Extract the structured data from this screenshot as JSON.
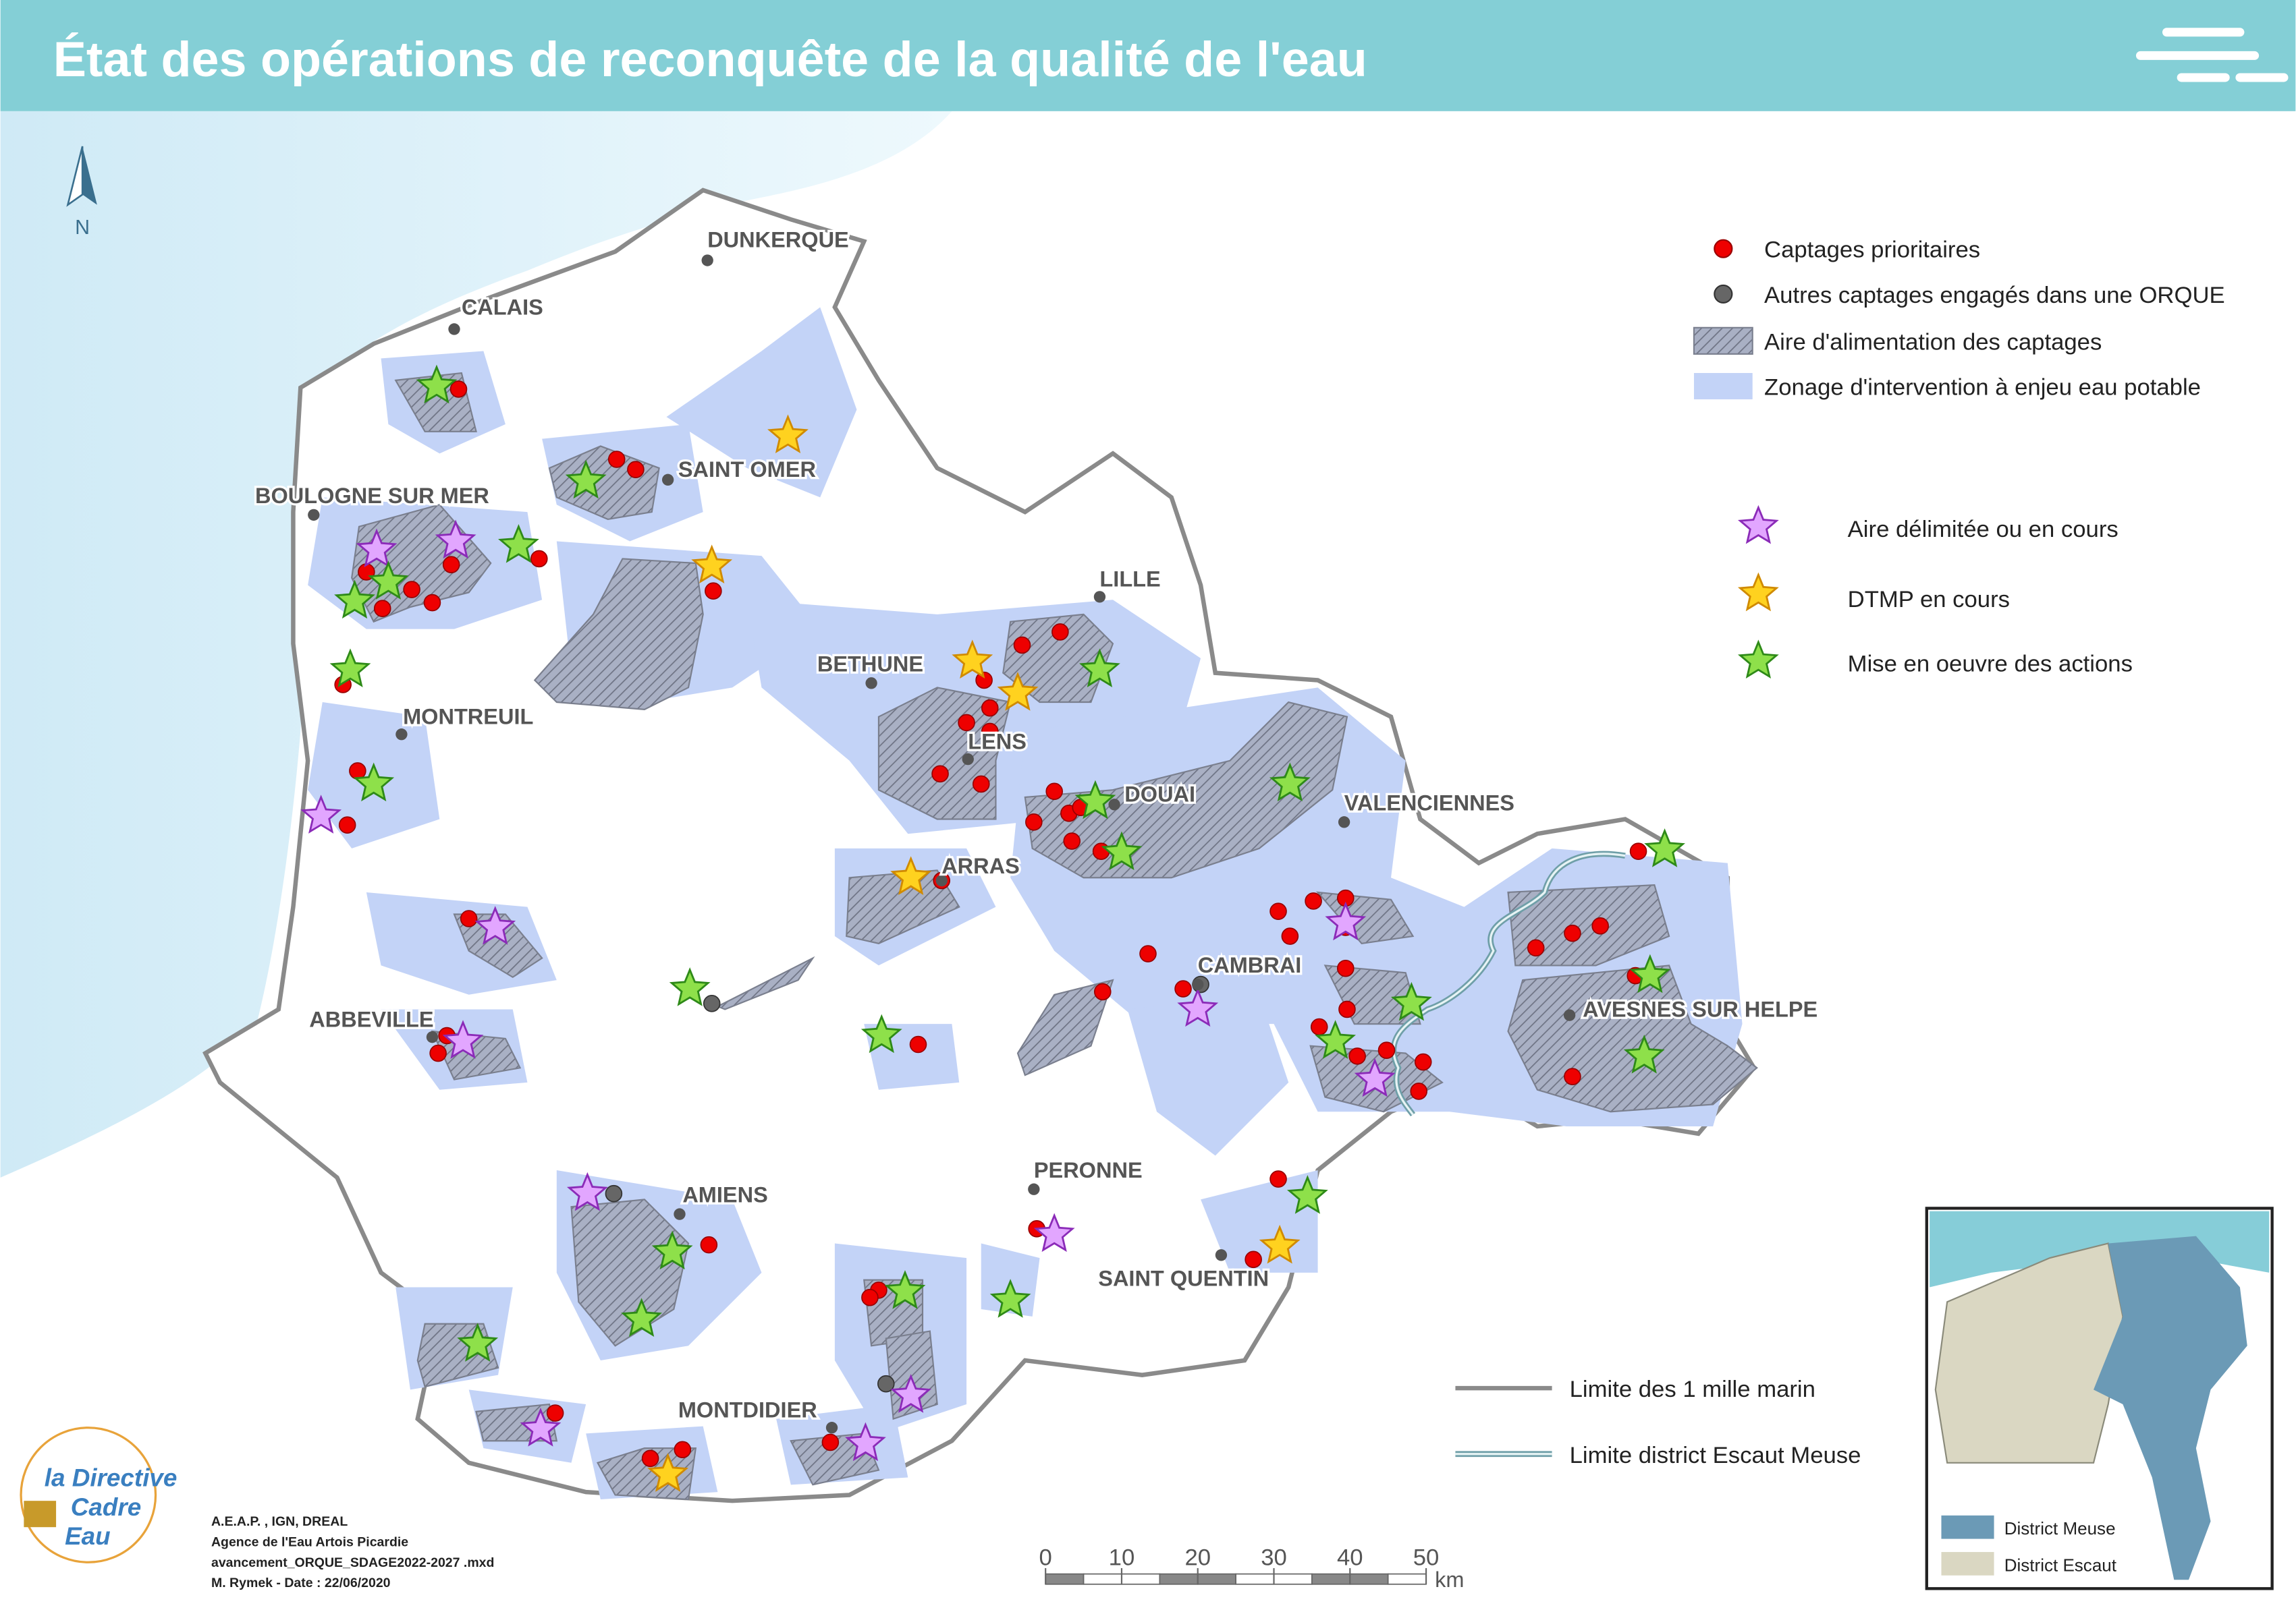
{
  "header": {
    "title": "État des opérations de reconquête de la qualité de l'eau"
  },
  "north_arrow": {
    "label": "N"
  },
  "cities": [
    "DUNKERQUE",
    "CALAIS",
    "SAINT OMER",
    "BOULOGNE SUR MER",
    "LILLE",
    "BETHUNE",
    "MONTREUIL",
    "LENS",
    "DOUAI",
    "VALENCIENNES",
    "ARRAS",
    "CAMBRAI",
    "AVESNES SUR HELPE",
    "ABBEVILLE",
    "PERONNE",
    "AMIENS",
    "SAINT QUENTIN",
    "MONTDIDIER"
  ],
  "legend": {
    "points": [
      "Captages prioritaires",
      "Autres captages engagés dans une ORQUE"
    ],
    "areas": [
      "Aire d'alimentation des captages",
      "Zonage d'intervention à enjeu eau potable"
    ],
    "stars": [
      "Aire délimitée ou en cours",
      "DTMP en cours",
      "Mise en oeuvre des actions"
    ],
    "lines": [
      "Limite des 1 mille marin",
      "Limite district Escaut Meuse"
    ]
  },
  "inset": {
    "legend": [
      "District Meuse",
      "District Escaut"
    ]
  },
  "scale_bar": {
    "ticks": [
      0,
      10,
      20,
      30,
      40,
      50
    ],
    "unit": "km"
  },
  "logo": {
    "lines": [
      "la Directive",
      "Cadre",
      "Eau"
    ]
  },
  "credits": [
    "A.E.A.P. , IGN, DREAL",
    "Agence de l'Eau Artois Picardie",
    "avancement_ORQUE_SDAGE2022-2027 .mxd",
    "M. Rymek - Date : 22/06/2020"
  ]
}
